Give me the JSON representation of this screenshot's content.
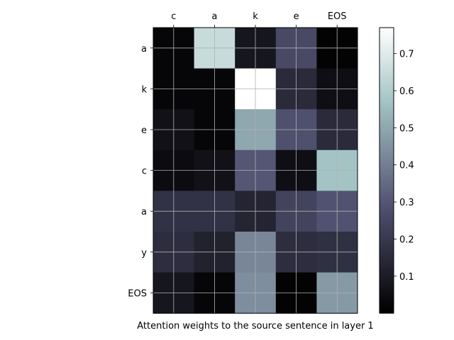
{
  "chart_data": {
    "type": "heatmap",
    "title": "",
    "xlabel": "Attention weights to the source sentence in layer 1",
    "ylabel": "",
    "x_categories": [
      "c",
      "a",
      "k",
      "e",
      "EOS"
    ],
    "y_categories": [
      "a",
      "k",
      "e",
      "c",
      "a",
      "y",
      "EOS"
    ],
    "x_axis_position": "top",
    "values": [
      [
        0.02,
        0.65,
        0.08,
        0.26,
        0.01
      ],
      [
        0.02,
        0.02,
        0.77,
        0.15,
        0.05
      ],
      [
        0.06,
        0.02,
        0.5,
        0.28,
        0.15
      ],
      [
        0.04,
        0.06,
        0.3,
        0.05,
        0.57
      ],
      [
        0.18,
        0.18,
        0.13,
        0.24,
        0.29
      ],
      [
        0.16,
        0.12,
        0.42,
        0.16,
        0.17
      ],
      [
        0.08,
        0.02,
        0.44,
        0.01,
        0.47
      ]
    ],
    "colormap": "bone",
    "colorbar": {
      "range": [
        0.0,
        0.77
      ],
      "ticks": [
        0.1,
        0.2,
        0.3,
        0.4,
        0.5,
        0.6,
        0.7
      ],
      "tick_labels": [
        "0.1",
        "0.2",
        "0.3",
        "0.4",
        "0.5",
        "0.6",
        "0.7"
      ]
    },
    "grid": true
  }
}
